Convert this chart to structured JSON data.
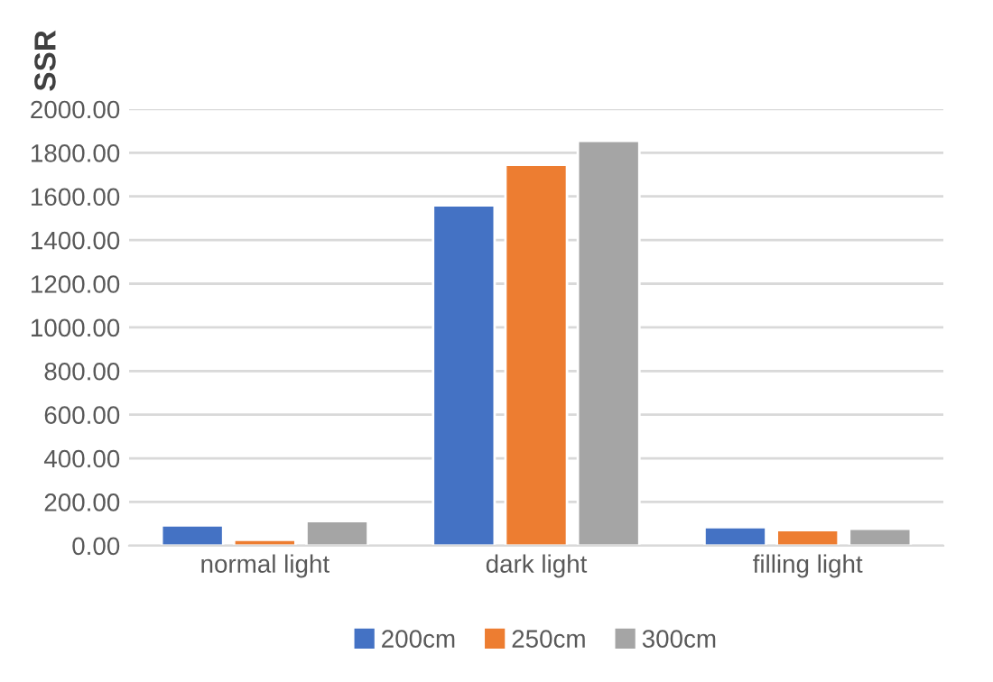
{
  "chart_data": {
    "type": "bar",
    "ylabel": "SSR",
    "categories": [
      "normal light",
      "dark light",
      "filling light"
    ],
    "series": [
      {
        "name": "200cm",
        "color": "#4472c4",
        "values": [
          93,
          1559,
          85
        ]
      },
      {
        "name": "250cm",
        "color": "#ed7d31",
        "values": [
          27,
          1745,
          71
        ]
      },
      {
        "name": "300cm",
        "color": "#a5a5a5",
        "values": [
          112,
          1855,
          77
        ]
      }
    ],
    "ylim": [
      0,
      2000
    ],
    "yticks": [
      {
        "value": 0,
        "label": "0.00"
      },
      {
        "value": 200,
        "label": "200.00"
      },
      {
        "value": 400,
        "label": "400.00"
      },
      {
        "value": 600,
        "label": "600.00"
      },
      {
        "value": 800,
        "label": "800.00"
      },
      {
        "value": 1000,
        "label": "1000.00"
      },
      {
        "value": 1200,
        "label": "1200.00"
      },
      {
        "value": 1400,
        "label": "1400.00"
      },
      {
        "value": 1600,
        "label": "1600.00"
      },
      {
        "value": 1800,
        "label": "1800.00"
      },
      {
        "value": 2000,
        "label": "2000.00"
      }
    ],
    "grid": "y",
    "legend": "bottom"
  }
}
